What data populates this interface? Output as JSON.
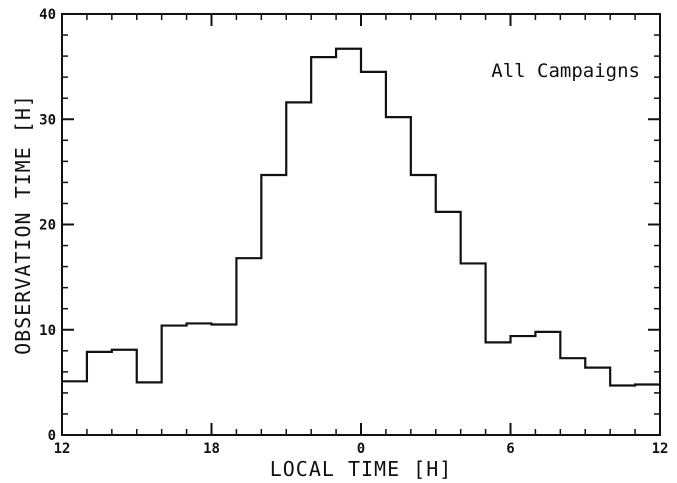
{
  "chart_data": {
    "type": "step",
    "title": "",
    "annotation": "All Campaigns",
    "xlabel": "LOCAL TIME [H]",
    "ylabel": "OBSERVATION TIME [H]",
    "xlim": [
      0,
      24
    ],
    "ylim": [
      0,
      40
    ],
    "x_tick_labels": [
      "12",
      "18",
      "0",
      "6",
      "12"
    ],
    "y_tick_labels": [
      "0",
      "10",
      "20",
      "30",
      "40"
    ],
    "x_major_ticks": [
      0,
      6,
      12,
      18,
      24
    ],
    "y_major_ticks": [
      0,
      10,
      20,
      30,
      40
    ],
    "bins": [
      {
        "start": 12,
        "end": 13,
        "value": 5.1
      },
      {
        "start": 13,
        "end": 14,
        "value": 7.9
      },
      {
        "start": 14,
        "end": 15,
        "value": 8.1
      },
      {
        "start": 15,
        "end": 16,
        "value": 5.0
      },
      {
        "start": 16,
        "end": 17,
        "value": 10.4
      },
      {
        "start": 17,
        "end": 18,
        "value": 10.6
      },
      {
        "start": 18,
        "end": 19,
        "value": 10.5
      },
      {
        "start": 19,
        "end": 20,
        "value": 16.8
      },
      {
        "start": 20,
        "end": 21,
        "value": 24.7
      },
      {
        "start": 21,
        "end": 22,
        "value": 31.6
      },
      {
        "start": 22,
        "end": 23,
        "value": 35.9
      },
      {
        "start": 23,
        "end": 24,
        "value": 36.7
      },
      {
        "start": 0,
        "end": 1,
        "value": 34.5
      },
      {
        "start": 1,
        "end": 2,
        "value": 30.2
      },
      {
        "start": 2,
        "end": 3,
        "value": 24.7
      },
      {
        "start": 3,
        "end": 4,
        "value": 21.2
      },
      {
        "start": 4,
        "end": 5,
        "value": 16.3
      },
      {
        "start": 5,
        "end": 6,
        "value": 8.8
      },
      {
        "start": 6,
        "end": 7,
        "value": 9.4
      },
      {
        "start": 7,
        "end": 8,
        "value": 9.8
      },
      {
        "start": 8,
        "end": 9,
        "value": 7.3
      },
      {
        "start": 9,
        "end": 10,
        "value": 6.4
      },
      {
        "start": 10,
        "end": 11,
        "value": 4.7
      },
      {
        "start": 11,
        "end": 12,
        "value": 4.8
      }
    ],
    "grid": false,
    "line_color": "#111111"
  }
}
